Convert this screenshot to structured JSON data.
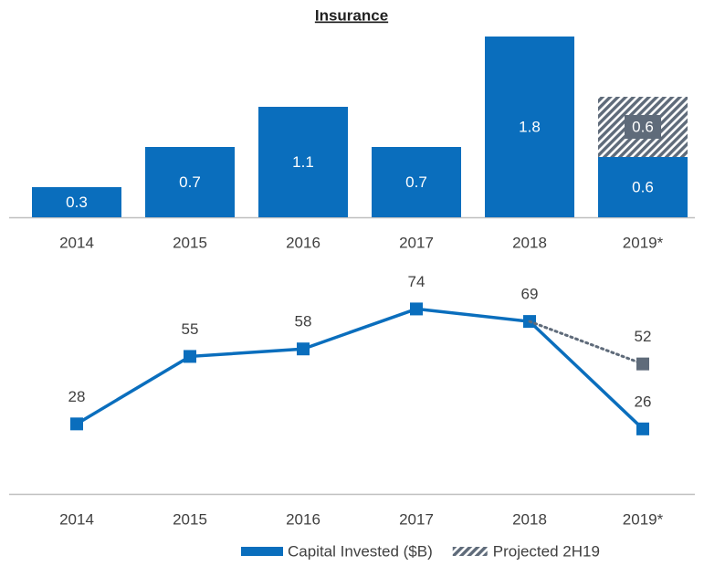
{
  "chart_data": [
    {
      "type": "stacked_bar",
      "title": "Insurance",
      "categories": [
        "2014",
        "2015",
        "2016",
        "2017",
        "2018",
        "2019*"
      ],
      "series": [
        {
          "name": "Capital Invested ($B)",
          "color": "#0a6ebd",
          "values": [
            0.3,
            0.7,
            1.1,
            0.7,
            1.8,
            0.6
          ]
        },
        {
          "name": "Projected 2H19",
          "color": "#5f6b7a",
          "hatch": true,
          "values": [
            null,
            null,
            null,
            null,
            null,
            0.6
          ]
        }
      ],
      "ylim": [
        0,
        1.8
      ],
      "legend": "bottom-right"
    },
    {
      "type": "line",
      "categories": [
        "2014",
        "2015",
        "2016",
        "2017",
        "2018",
        "2019*"
      ],
      "series": [
        {
          "name": "Capital Invested ($B)",
          "color": "#0a6ebd",
          "values": [
            28,
            55,
            58,
            74,
            69,
            26
          ]
        },
        {
          "name": "Projected 2H19",
          "color": "#5f6b7a",
          "dotted": true,
          "values": [
            null,
            null,
            null,
            null,
            null,
            52
          ]
        }
      ],
      "ylim": [
        0,
        80
      ]
    }
  ]
}
